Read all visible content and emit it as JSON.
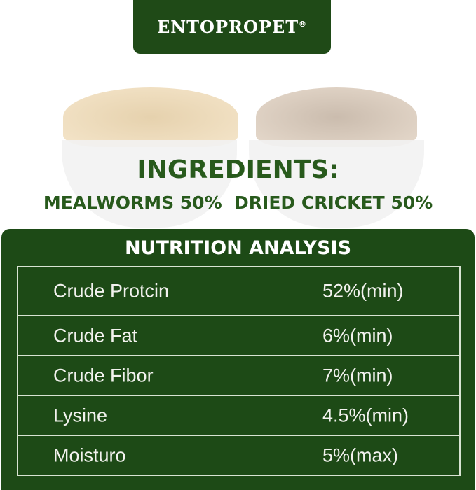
{
  "brand": {
    "name": "ENTOPROPET",
    "mark": "®",
    "color": "#1f4a17"
  },
  "ingredients": {
    "title": "INGREDIENTS:",
    "line": "MEALWORMS 50%  DRIED CRICKET 50%",
    "color": "#285a1c"
  },
  "nutrition": {
    "title": "NUTRITION ANALYSIS",
    "rows": [
      {
        "label": "Crude Protcin",
        "value": "52%(min)"
      },
      {
        "label": "Crude Fat",
        "value": "6%(min)"
      },
      {
        "label": "Crude Fibor",
        "value": "7%(min)"
      },
      {
        "label": "Lysine",
        "value": "4.5%(min)"
      },
      {
        "label": "Moisturo",
        "value": "5%(max)"
      }
    ]
  }
}
